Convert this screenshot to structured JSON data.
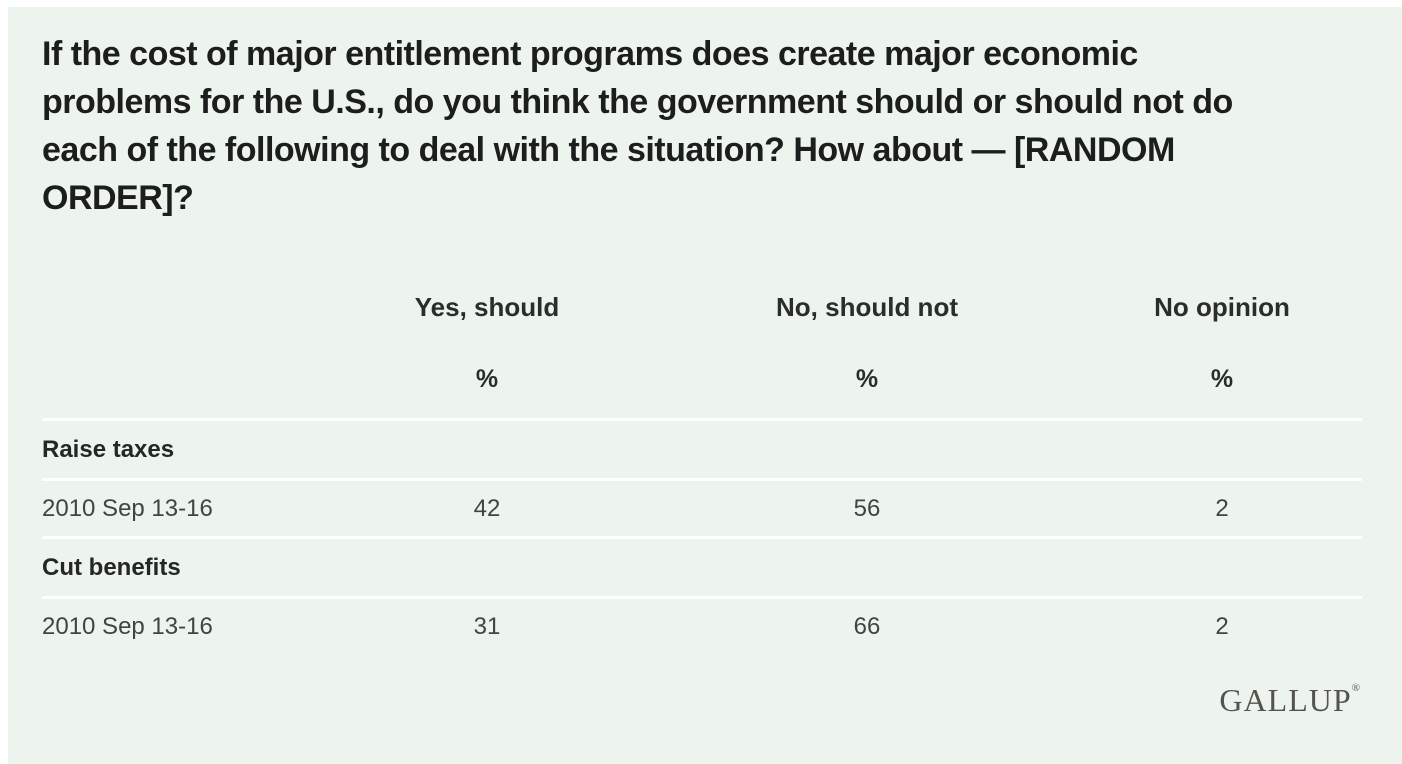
{
  "chart_data": {
    "type": "table",
    "title": "If the cost of major entitlement programs does create major economic problems for the U.S., do you think the government should or should not do each of the following to deal with the situation? How about — [RANDOM ORDER]?",
    "columns": [
      "Yes, should",
      "No, should not",
      "No opinion"
    ],
    "unit_labels": [
      "%",
      "%",
      "%"
    ],
    "groups": [
      {
        "category": "Raise taxes",
        "rows": [
          {
            "date": "2010 Sep 13-16",
            "values": [
              42,
              56,
              2
            ]
          }
        ]
      },
      {
        "category": "Cut benefits",
        "rows": [
          {
            "date": "2010 Sep 13-16",
            "values": [
              31,
              66,
              2
            ]
          }
        ]
      }
    ],
    "legend_position": "none",
    "grid": "horizontal-white-dividers",
    "source": "GALLUP"
  },
  "branding": {
    "logo": "GALLUP",
    "registered_mark": "®"
  },
  "colors": {
    "background": "#edf4ee",
    "frame": "#ffffff",
    "title_text": "#1b1e1c",
    "header_text": "#2a2d2c",
    "group_text": "#242726",
    "data_text": "#404442",
    "divider": "#ffffff",
    "logo": "#55534d"
  }
}
